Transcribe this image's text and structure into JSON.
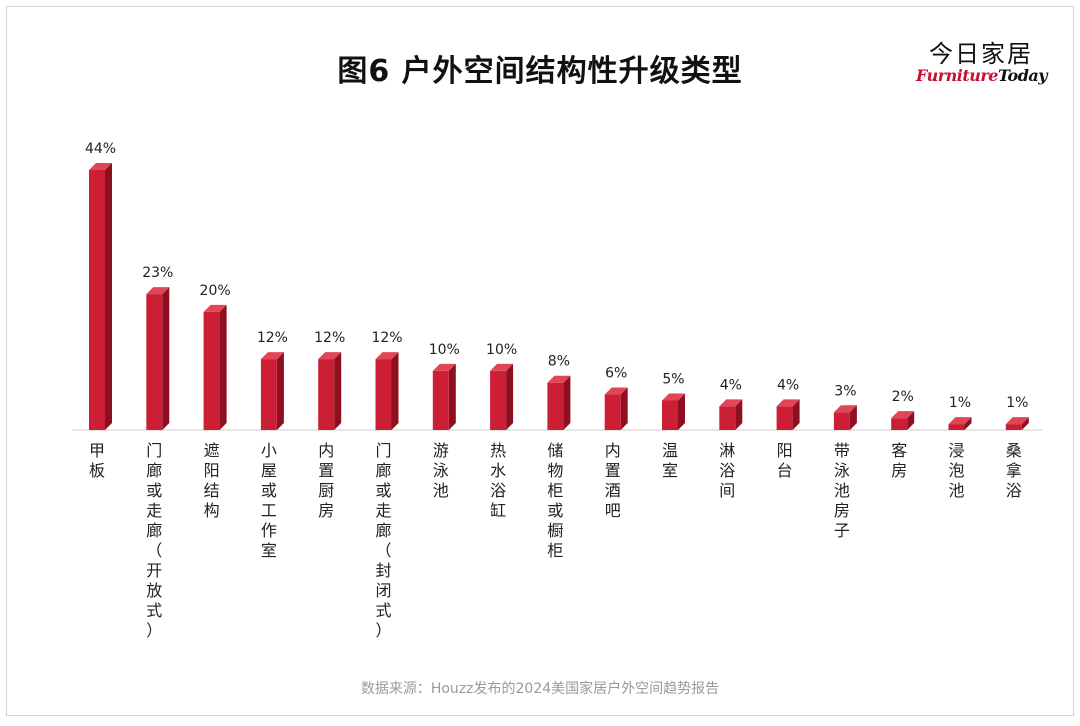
{
  "title": "图6  户外空间结构性升级类型",
  "logo": {
    "cn": "今日家居",
    "en_part1": "Furniture",
    "en_part2": "Today"
  },
  "source": "数据来源：Houzz发布的2024美国家居户外空间趋势报告",
  "colors": {
    "bar_front": "#cc1f36",
    "bar_side": "#8e0f1f",
    "bar_top": "#e24656",
    "axis": "#cccccc"
  },
  "chart_data": {
    "type": "bar",
    "title": "图6  户外空间结构性升级类型",
    "categories": [
      "甲板",
      "门廊或走廊（开放式）",
      "遮阳结构",
      "小屋或工作室",
      "内置厨房",
      "门廊或走廊（封闭式）",
      "游泳池",
      "热水浴缸",
      "储物柜或橱柜",
      "内置酒吧",
      "温室",
      "淋浴间",
      "阳台",
      "带泳池房子",
      "客房",
      "浸泡池",
      "桑拿浴"
    ],
    "values": [
      44,
      23,
      20,
      12,
      12,
      12,
      10,
      10,
      8,
      6,
      5,
      4,
      4,
      3,
      2,
      1,
      1
    ],
    "value_labels": [
      "44%",
      "23%",
      "20%",
      "12%",
      "12%",
      "12%",
      "10%",
      "10%",
      "8%",
      "6%",
      "5%",
      "4%",
      "4%",
      "3%",
      "2%",
      "1%",
      "1%"
    ],
    "unit": "%",
    "xlabel": "",
    "ylabel": "",
    "ylim": [
      0,
      44
    ],
    "grid": false,
    "legend": "none"
  }
}
